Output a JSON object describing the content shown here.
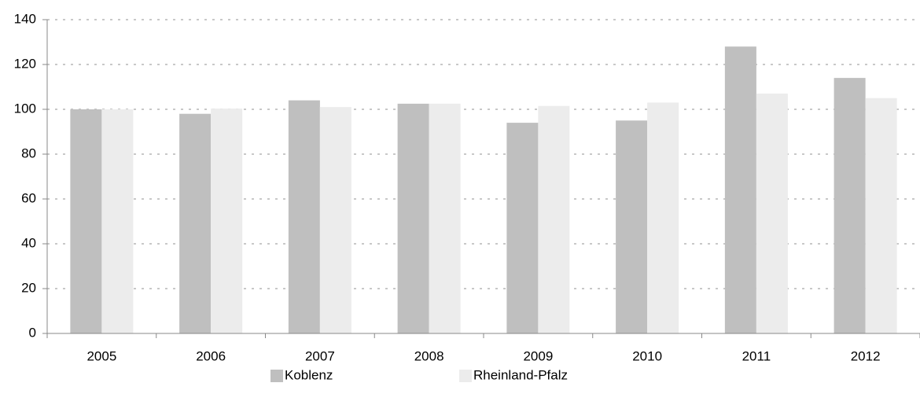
{
  "chart_data": {
    "type": "bar",
    "categories": [
      "2005",
      "2006",
      "2007",
      "2008",
      "2009",
      "2010",
      "2011",
      "2012"
    ],
    "series": [
      {
        "name": "Koblenz",
        "color": "#bfbfbf",
        "values": [
          100,
          98,
          104,
          102.5,
          94,
          95,
          128,
          114
        ]
      },
      {
        "name": "Rheinland-Pfalz",
        "color": "#ececec",
        "values": [
          100,
          100.3,
          101,
          102.5,
          101.5,
          103,
          107,
          105
        ]
      }
    ],
    "ylim": [
      0,
      140
    ],
    "yticks": [
      0,
      20,
      40,
      60,
      80,
      100,
      120,
      140
    ],
    "grid": true,
    "legend": "bottom"
  }
}
